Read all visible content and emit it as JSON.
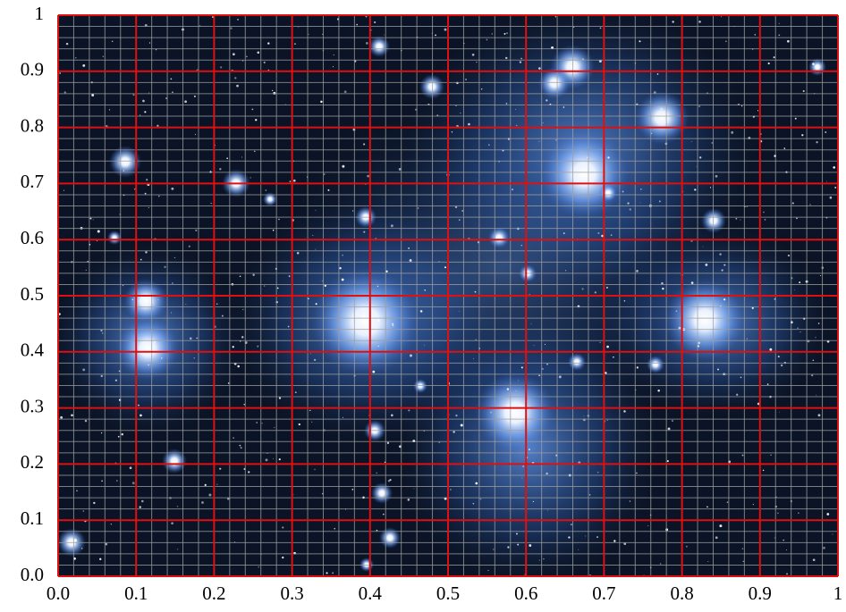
{
  "chart_data": {
    "type": "image-grid",
    "xlim": [
      0,
      1
    ],
    "ylim": [
      0,
      1
    ],
    "xticks": [
      {
        "value": 0,
        "label": "0.0"
      },
      0.1,
      0.2,
      0.3,
      0.4,
      0.5,
      0.6,
      0.7,
      0.8,
      0.9,
      1
    ],
    "yticks": [
      {
        "value": 0,
        "label": "0.0"
      },
      0.1,
      0.2,
      0.3,
      0.4,
      0.5,
      0.6,
      0.7,
      0.8,
      0.9,
      1
    ],
    "xminorticks": [
      0.02,
      0.04,
      0.06,
      0.08,
      0.12,
      0.14,
      0.16,
      0.18,
      0.22,
      0.24,
      0.26,
      0.28,
      0.32,
      0.34,
      0.36,
      0.38,
      0.42,
      0.44,
      0.46,
      0.48,
      0.52,
      0.54,
      0.56,
      0.58,
      0.62,
      0.64,
      0.66,
      0.68,
      0.72,
      0.74,
      0.76,
      0.78,
      0.82,
      0.84,
      0.86,
      0.88,
      0.92,
      0.94,
      0.96,
      0.98
    ],
    "yminorticks": [
      0.02,
      0.04,
      0.06,
      0.08,
      0.12,
      0.14,
      0.16,
      0.18,
      0.22,
      0.24,
      0.26,
      0.28,
      0.32,
      0.34,
      0.36,
      0.38,
      0.42,
      0.44,
      0.46,
      0.48,
      0.52,
      0.54,
      0.56,
      0.58,
      0.62,
      0.64,
      0.66,
      0.68,
      0.72,
      0.74,
      0.76,
      0.78,
      0.82,
      0.84,
      0.86,
      0.88,
      0.92,
      0.94,
      0.96,
      0.98
    ],
    "grid": true,
    "grid_color": "#e01010",
    "minor_grid_color": "#a0a0a0"
  }
}
